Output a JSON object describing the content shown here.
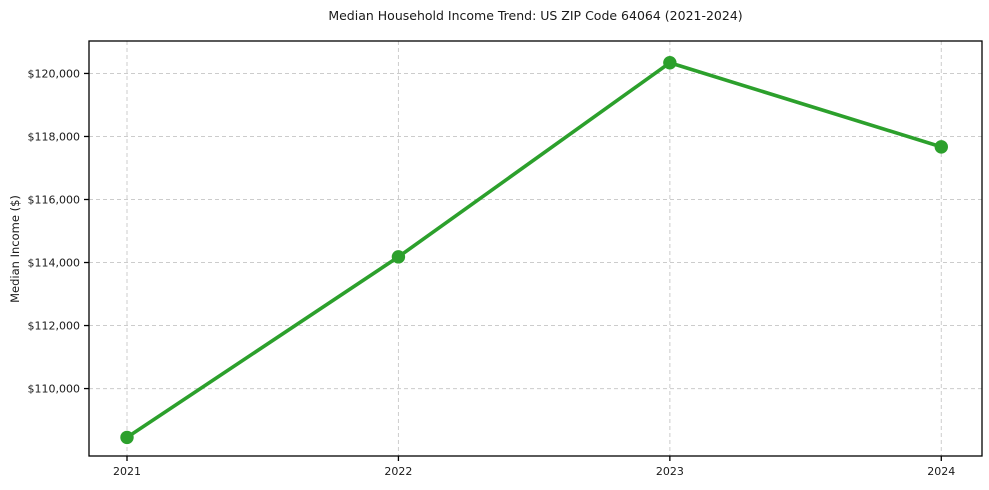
{
  "chart_data": {
    "type": "line",
    "title": "Median Household Income Trend: US ZIP Code 64064 (2021-2024)",
    "xlabel": "",
    "ylabel": "Median Income ($)",
    "x": [
      2021,
      2022,
      2023,
      2024
    ],
    "series": [
      {
        "name": "Median Household Income",
        "values": [
          108450,
          114180,
          120340,
          117670
        ]
      }
    ],
    "xticks": {
      "values": [
        2021,
        2022,
        2023,
        2024
      ],
      "labels": [
        "2021",
        "2022",
        "2023",
        "2024"
      ]
    },
    "yticks": {
      "values": [
        110000,
        112000,
        114000,
        116000,
        118000,
        120000
      ],
      "labels": [
        "$110,000",
        "$112,000",
        "$114,000",
        "$116,000",
        "$118,000",
        "$120,000"
      ]
    },
    "xlim": [
      2020.86,
      2024.15
    ],
    "ylim": [
      107860,
      121030
    ],
    "grid": true,
    "grid_style": "dashed",
    "legend": "none",
    "line_color": "#2ca02c",
    "marker": "circle",
    "grid_color": "#cccccc",
    "axis_color": "#000000",
    "text_color": "#1a1a1a",
    "background": "#ffffff"
  }
}
